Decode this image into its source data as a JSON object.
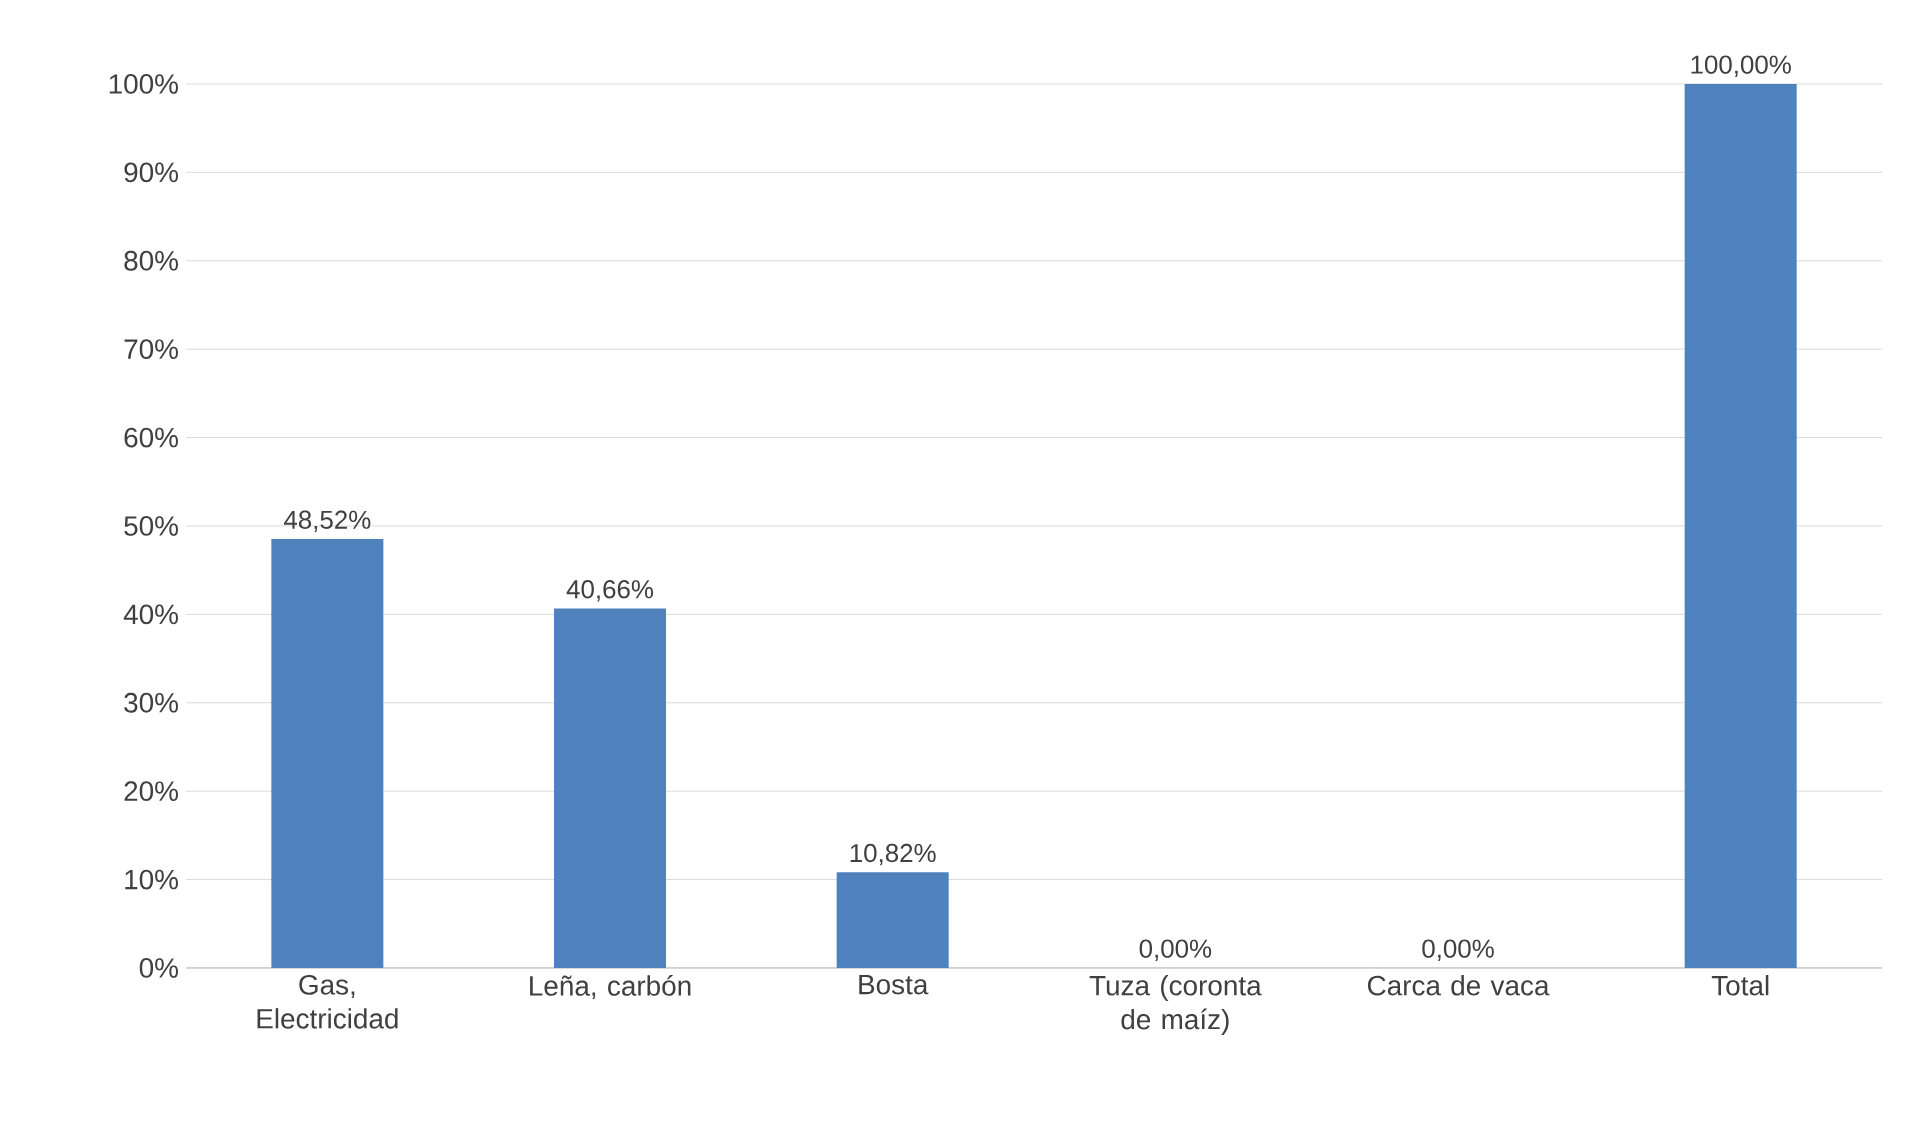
{
  "chart_data": {
    "type": "bar",
    "categories": [
      "Gas, Electricidad",
      "Leña, carbón",
      "Bosta",
      "Tuza (coronta de maíz)",
      "Carca de vaca",
      "Total"
    ],
    "values": [
      48.52,
      40.66,
      10.82,
      0,
      0,
      100
    ],
    "value_labels": [
      "48,52%",
      "40,66%",
      "10,82%",
      "0,00%",
      "0,00%",
      "100,00%"
    ],
    "color": "#4f81bd",
    "ylim": [
      0,
      100
    ],
    "yticks": [
      {
        "value": 0,
        "label": "0%"
      },
      {
        "value": 10,
        "label": "10%"
      },
      {
        "value": 20,
        "label": "20%"
      },
      {
        "value": 30,
        "label": "30%"
      },
      {
        "value": 40,
        "label": "40%"
      },
      {
        "value": 50,
        "label": "50%"
      },
      {
        "value": 60,
        "label": "60%"
      },
      {
        "value": 70,
        "label": "70%"
      },
      {
        "value": 80,
        "label": "80%"
      },
      {
        "value": 90,
        "label": "90%"
      },
      {
        "value": 100,
        "label": "100%"
      }
    ],
    "grid": "y"
  }
}
